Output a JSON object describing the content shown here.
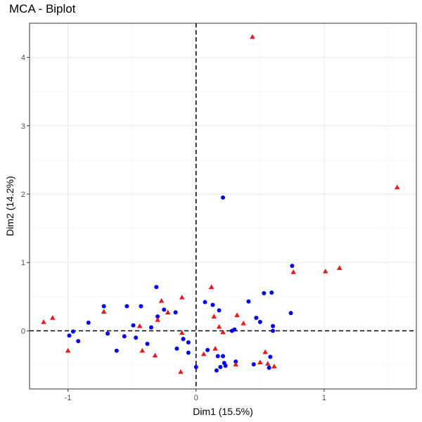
{
  "chart_data": {
    "type": "scatter",
    "title": "MCA - Biplot",
    "xlabel": "Dim1 (15.5%)",
    "ylabel": "Dim2 (14.2%)",
    "xlim": [
      -1.3,
      1.72
    ],
    "ylim": [
      -0.85,
      4.5
    ],
    "x_ticks": [
      -1,
      0,
      1
    ],
    "y_ticks": [
      0,
      1,
      2,
      3,
      4
    ],
    "grid": true,
    "legend": "none",
    "reference_lines": {
      "x": 0,
      "y": 0,
      "style": "dashed"
    },
    "series": [
      {
        "marker": "circle",
        "color": "#0000ff",
        "points": [
          [
            -0.99,
            -0.07
          ],
          [
            -0.96,
            -0.01
          ],
          [
            -0.92,
            -0.15
          ],
          [
            -0.84,
            0.12
          ],
          [
            -0.72,
            0.36
          ],
          [
            -0.69,
            -0.04
          ],
          [
            -0.62,
            -0.29
          ],
          [
            -0.56,
            -0.08
          ],
          [
            -0.54,
            0.36
          ],
          [
            -0.49,
            0.08
          ],
          [
            -0.47,
            -0.1
          ],
          [
            -0.43,
            0.36
          ],
          [
            -0.38,
            -0.19
          ],
          [
            -0.35,
            0.05
          ],
          [
            -0.31,
            0.64
          ],
          [
            -0.3,
            0.21
          ],
          [
            -0.25,
            0.31
          ],
          [
            -0.16,
            0.27
          ],
          [
            -0.15,
            -0.26
          ],
          [
            -0.1,
            -0.12
          ],
          [
            -0.06,
            -0.32
          ],
          [
            -0.06,
            -0.17
          ],
          [
            0,
            -0.53
          ],
          [
            0.07,
            0.42
          ],
          [
            0.09,
            -0.28
          ],
          [
            0.13,
            0.38
          ],
          [
            0.16,
            -0.58
          ],
          [
            0.17,
            -0.37
          ],
          [
            0.18,
            0.3
          ],
          [
            0.19,
            -0.53
          ],
          [
            0.21,
            -0.37
          ],
          [
            0.21,
            1.95
          ],
          [
            0.22,
            -0.47
          ],
          [
            0.23,
            -0.51
          ],
          [
            0.28,
            0.0
          ],
          [
            0.3,
            0.02
          ],
          [
            0.31,
            -0.45
          ],
          [
            0.41,
            0.43
          ],
          [
            0.45,
            -0.49
          ],
          [
            0.47,
            0.19
          ],
          [
            0.5,
            0.13
          ],
          [
            0.53,
            0.55
          ],
          [
            0.57,
            -0.54
          ],
          [
            0.58,
            -0.38
          ],
          [
            0.59,
            0.56
          ],
          [
            0.6,
            0.07
          ],
          [
            0.6,
            0.0
          ],
          [
            0.74,
            0.26
          ],
          [
            0.75,
            0.95
          ]
        ]
      },
      {
        "marker": "triangle",
        "color": "#e41a1c",
        "points": [
          [
            -1.19,
            0.13
          ],
          [
            -1.12,
            0.19
          ],
          [
            -1.0,
            -0.29
          ],
          [
            -0.72,
            0.28
          ],
          [
            -0.44,
            0.07
          ],
          [
            -0.42,
            -0.29
          ],
          [
            -0.32,
            -0.36
          ],
          [
            -0.3,
            0.16
          ],
          [
            -0.27,
            0.44
          ],
          [
            -0.22,
            0.27
          ],
          [
            -0.12,
            -0.6
          ],
          [
            -0.11,
            0.49
          ],
          [
            -0.11,
            -0.03
          ],
          [
            0.06,
            -0.34
          ],
          [
            0.12,
            0.64
          ],
          [
            0.14,
            0.21
          ],
          [
            0.15,
            -0.26
          ],
          [
            0.18,
            0.06
          ],
          [
            0.21,
            -0.02
          ],
          [
            0.31,
            -0.49
          ],
          [
            0.32,
            0.23
          ],
          [
            0.37,
            0.11
          ],
          [
            0.44,
            4.3
          ],
          [
            0.5,
            -0.46
          ],
          [
            0.54,
            -0.31
          ],
          [
            0.56,
            -0.48
          ],
          [
            0.61,
            -0.52
          ],
          [
            0.76,
            0.86
          ],
          [
            1.01,
            0.87
          ],
          [
            1.12,
            0.92
          ],
          [
            1.57,
            2.1
          ]
        ]
      }
    ]
  }
}
